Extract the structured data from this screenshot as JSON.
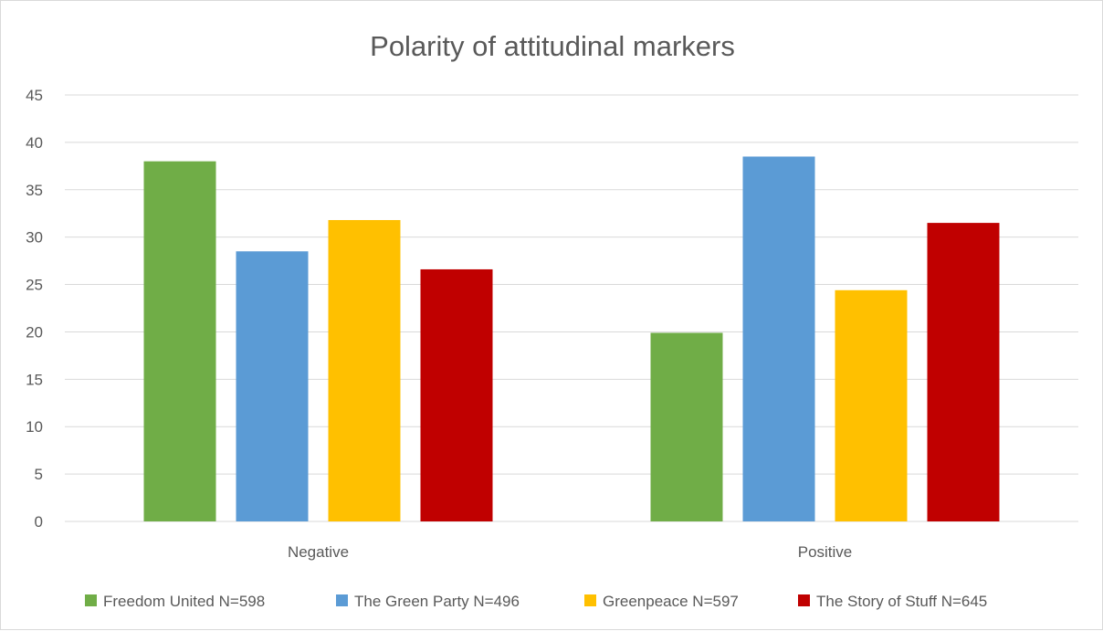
{
  "chart_data": {
    "type": "bar",
    "title": "Polarity of attitudinal markers",
    "xlabel": "",
    "ylabel": "",
    "categories": [
      "Negative",
      "Positive"
    ],
    "ylim": [
      0,
      45
    ],
    "y_ticks": [
      0,
      5,
      10,
      15,
      20,
      25,
      30,
      35,
      40,
      45
    ],
    "grid": true,
    "legend_position": "bottom",
    "series": [
      {
        "name": "Freedom United N=598",
        "color": "#70ad47",
        "values": [
          38.0,
          19.9
        ]
      },
      {
        "name": "The Green Party N=496",
        "color": "#5b9bd5",
        "values": [
          28.5,
          38.5
        ]
      },
      {
        "name": "Greenpeace N=597",
        "color": "#ffc000",
        "values": [
          31.8,
          24.4
        ]
      },
      {
        "name": "The Story of Stuff N=645",
        "color": "#c00000",
        "values": [
          26.6,
          31.5
        ]
      }
    ]
  }
}
